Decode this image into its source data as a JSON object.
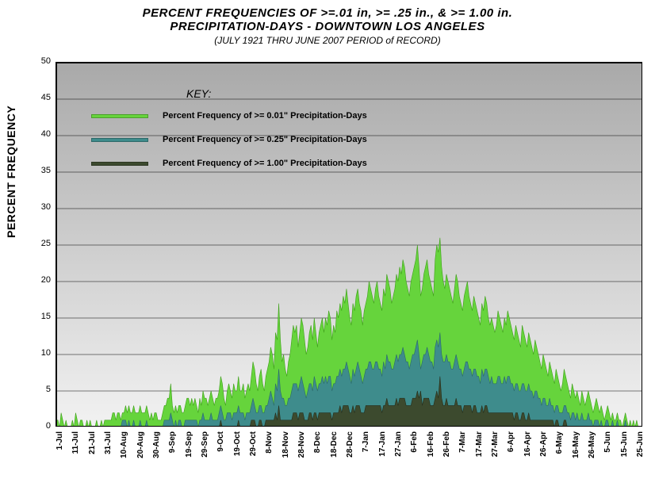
{
  "title_line1": "PERCENT FREQUENCIES OF >=.01 in,  >= .25 in., & >= 1.00 in.",
  "title_line2": "PRECIPITATION-DAYS  -  DOWNTOWN LOS ANGELES",
  "subtitle": "(JULY 1921 THRU JUNE 2007 PERIOD of RECORD)",
  "y_axis_label": "PERCENT FREQUENCY",
  "legend": {
    "title": "KEY:",
    "items": [
      {
        "label": "Percent Frequency of >= 0.01\" Precipitation-Days",
        "color": "#66d43c"
      },
      {
        "label": "Percent Frequency of >= 0.25\" Precipitation-Days",
        "color": "#3e8c8c"
      },
      {
        "label": "Percent Frequency of >= 1.00\" Precipitation-Days",
        "color": "#3c4a2e"
      }
    ]
  },
  "chart": {
    "type": "area",
    "ylim": [
      0,
      50
    ],
    "ytick_step": 5,
    "grid_color": "#000000",
    "grid_width": 0.6,
    "background": {
      "gradient_top": "#a9a9a9",
      "gradient_bottom": "#f2f2f2"
    },
    "x_labels": [
      "1-Jul",
      "11-Jul",
      "21-Jul",
      "31-Jul",
      "10-Aug",
      "20-Aug",
      "30-Aug",
      "9-Sep",
      "19-Sep",
      "29-Sep",
      "9-Oct",
      "19-Oct",
      "29-Oct",
      "8-Nov",
      "18-Nov",
      "28-Nov",
      "8-Dec",
      "18-Dec",
      "28-Dec",
      "7-Jan",
      "17-Jan",
      "27-Jan",
      "6-Feb",
      "16-Feb",
      "26-Feb",
      "7-Mar",
      "17-Mar",
      "27-Mar",
      "6-Apr",
      "16-Apr",
      "26-Apr",
      "6-May",
      "16-May",
      "26-May",
      "5-Jun",
      "15-Jun",
      "25-Jun"
    ],
    "x_label_step_days": 10,
    "n_days": 365,
    "series": [
      {
        "name": "ge001",
        "color": "#66d43c",
        "stroke": "#3da018",
        "values": [
          1,
          1,
          0,
          2,
          1,
          0,
          1,
          0,
          0,
          0,
          1,
          0,
          2,
          1,
          0,
          1,
          1,
          0,
          0,
          1,
          0,
          1,
          0,
          0,
          0,
          1,
          0,
          0,
          1,
          0,
          1,
          1,
          1,
          1,
          1,
          2,
          2,
          1,
          2,
          2,
          1,
          2,
          2,
          3,
          2,
          3,
          2,
          2,
          3,
          2,
          2,
          2,
          3,
          2,
          2,
          2,
          3,
          2,
          1,
          2,
          1,
          2,
          2,
          1,
          1,
          1,
          2,
          3,
          3,
          4,
          4,
          6,
          3,
          2,
          3,
          2,
          3,
          3,
          2,
          2,
          3,
          4,
          4,
          3,
          4,
          3,
          4,
          3,
          2,
          4,
          3,
          5,
          4,
          4,
          3,
          4,
          5,
          4,
          3,
          4,
          4,
          5,
          7,
          6,
          4,
          3,
          5,
          6,
          5,
          4,
          6,
          5,
          5,
          7,
          5,
          5,
          6,
          4,
          5,
          6,
          5,
          7,
          9,
          8,
          6,
          5,
          7,
          8,
          6,
          5,
          7,
          8,
          9,
          11,
          10,
          8,
          13,
          12,
          17,
          12,
          9,
          10,
          8,
          7,
          9,
          10,
          12,
          14,
          13,
          14,
          11,
          13,
          15,
          14,
          12,
          10,
          11,
          13,
          14,
          12,
          15,
          13,
          11,
          13,
          14,
          15,
          13,
          15,
          14,
          16,
          15,
          12,
          14,
          13,
          16,
          15,
          17,
          16,
          18,
          17,
          19,
          17,
          15,
          14,
          17,
          16,
          18,
          19,
          17,
          16,
          14,
          16,
          17,
          18,
          20,
          19,
          18,
          17,
          19,
          20,
          18,
          17,
          16,
          19,
          18,
          21,
          20,
          19,
          17,
          18,
          19,
          21,
          20,
          22,
          21,
          23,
          22,
          20,
          19,
          18,
          20,
          21,
          22,
          23,
          25,
          22,
          18,
          19,
          21,
          22,
          23,
          21,
          20,
          19,
          18,
          23,
          25,
          24,
          26,
          22,
          20,
          19,
          21,
          20,
          19,
          18,
          17,
          19,
          21,
          20,
          18,
          17,
          16,
          18,
          19,
          20,
          18,
          17,
          16,
          18,
          17,
          16,
          15,
          14,
          17,
          16,
          18,
          17,
          15,
          14,
          15,
          14,
          13,
          14,
          16,
          15,
          14,
          13,
          15,
          14,
          16,
          15,
          14,
          13,
          12,
          14,
          13,
          12,
          11,
          14,
          13,
          12,
          11,
          13,
          12,
          11,
          10,
          12,
          11,
          10,
          9,
          8,
          10,
          9,
          8,
          7,
          9,
          8,
          7,
          6,
          8,
          7,
          6,
          5,
          6,
          8,
          7,
          6,
          5,
          4,
          6,
          5,
          4,
          5,
          4,
          3,
          5,
          4,
          3,
          4,
          5,
          4,
          3,
          2,
          3,
          4,
          3,
          2,
          3,
          2,
          1,
          2,
          3,
          2,
          1,
          2,
          1,
          1,
          2,
          1,
          1,
          0,
          1,
          2,
          1,
          0,
          1,
          0,
          1,
          0,
          1,
          0,
          0
        ]
      },
      {
        "name": "ge025",
        "color": "#3e8c8c",
        "stroke": "#2b6a6a",
        "values": [
          0,
          0,
          0,
          0,
          0,
          0,
          0,
          0,
          0,
          0,
          0,
          0,
          0,
          0,
          0,
          0,
          0,
          0,
          0,
          0,
          0,
          0,
          0,
          0,
          0,
          0,
          0,
          0,
          0,
          0,
          0,
          0,
          0,
          0,
          0,
          0,
          0,
          0,
          0,
          0,
          0,
          1,
          1,
          1,
          0,
          1,
          0,
          0,
          1,
          0,
          0,
          0,
          1,
          0,
          0,
          0,
          1,
          0,
          0,
          0,
          0,
          0,
          0,
          0,
          0,
          0,
          0,
          1,
          1,
          1,
          1,
          2,
          1,
          0,
          1,
          0,
          1,
          1,
          0,
          0,
          1,
          1,
          1,
          1,
          1,
          1,
          1,
          1,
          0,
          1,
          1,
          2,
          1,
          1,
          1,
          1,
          2,
          1,
          1,
          1,
          1,
          2,
          3,
          2,
          1,
          1,
          2,
          2,
          2,
          1,
          2,
          2,
          2,
          3,
          2,
          2,
          2,
          1,
          2,
          2,
          2,
          3,
          4,
          3,
          2,
          2,
          3,
          3,
          2,
          2,
          3,
          3,
          4,
          5,
          4,
          3,
          6,
          5,
          8,
          5,
          4,
          4,
          3,
          3,
          4,
          4,
          5,
          6,
          6,
          6,
          5,
          6,
          7,
          6,
          5,
          4,
          5,
          6,
          6,
          5,
          7,
          6,
          5,
          6,
          6,
          7,
          6,
          7,
          6,
          7,
          7,
          5,
          6,
          6,
          7,
          7,
          8,
          7,
          8,
          8,
          9,
          8,
          7,
          6,
          8,
          7,
          8,
          9,
          8,
          7,
          6,
          7,
          8,
          8,
          9,
          9,
          8,
          8,
          9,
          9,
          8,
          8,
          7,
          9,
          8,
          10,
          9,
          9,
          8,
          8,
          9,
          10,
          9,
          10,
          10,
          11,
          10,
          9,
          9,
          8,
          9,
          10,
          10,
          11,
          12,
          10,
          8,
          9,
          10,
          10,
          11,
          10,
          9,
          9,
          8,
          11,
          12,
          11,
          13,
          10,
          9,
          9,
          10,
          9,
          9,
          8,
          8,
          9,
          10,
          9,
          8,
          8,
          7,
          8,
          9,
          9,
          8,
          8,
          7,
          8,
          8,
          7,
          7,
          6,
          8,
          7,
          8,
          8,
          7,
          6,
          7,
          6,
          6,
          6,
          7,
          7,
          6,
          6,
          7,
          6,
          7,
          7,
          6,
          6,
          5,
          6,
          6,
          5,
          5,
          6,
          6,
          5,
          5,
          6,
          5,
          5,
          4,
          5,
          5,
          4,
          4,
          3,
          4,
          4,
          3,
          3,
          4,
          3,
          3,
          2,
          3,
          3,
          2,
          2,
          2,
          3,
          3,
          2,
          2,
          1,
          2,
          2,
          1,
          2,
          1,
          1,
          2,
          1,
          1,
          1,
          2,
          1,
          1,
          0,
          1,
          1,
          1,
          0,
          1,
          0,
          0,
          1,
          1,
          0,
          0,
          1,
          0,
          0,
          1,
          0,
          0,
          0,
          0,
          1,
          0,
          0,
          0,
          0,
          0,
          0,
          0,
          0,
          0
        ]
      },
      {
        "name": "ge100",
        "color": "#3c4a2e",
        "stroke": "#262e1c",
        "values": [
          0,
          0,
          0,
          0,
          0,
          0,
          0,
          0,
          0,
          0,
          0,
          0,
          0,
          0,
          0,
          0,
          0,
          0,
          0,
          0,
          0,
          0,
          0,
          0,
          0,
          0,
          0,
          0,
          0,
          0,
          0,
          0,
          0,
          0,
          0,
          0,
          0,
          0,
          0,
          0,
          0,
          0,
          0,
          0,
          0,
          0,
          0,
          0,
          0,
          0,
          0,
          0,
          0,
          0,
          0,
          0,
          0,
          0,
          0,
          0,
          0,
          0,
          0,
          0,
          0,
          0,
          0,
          0,
          0,
          0,
          0,
          0,
          0,
          0,
          0,
          0,
          0,
          0,
          0,
          0,
          0,
          0,
          0,
          0,
          0,
          0,
          0,
          0,
          0,
          0,
          0,
          0,
          0,
          0,
          0,
          0,
          0,
          0,
          0,
          0,
          0,
          0,
          1,
          0,
          0,
          0,
          0,
          0,
          0,
          0,
          0,
          0,
          0,
          1,
          0,
          0,
          0,
          0,
          0,
          0,
          0,
          1,
          1,
          1,
          0,
          0,
          1,
          1,
          0,
          0,
          1,
          1,
          1,
          1,
          1,
          1,
          2,
          1,
          3,
          1,
          1,
          1,
          1,
          1,
          1,
          1,
          1,
          2,
          2,
          2,
          1,
          2,
          2,
          2,
          1,
          1,
          1,
          2,
          2,
          1,
          2,
          2,
          1,
          2,
          2,
          2,
          2,
          2,
          2,
          2,
          2,
          1,
          2,
          2,
          2,
          2,
          3,
          2,
          3,
          3,
          3,
          3,
          2,
          2,
          3,
          2,
          3,
          3,
          3,
          2,
          2,
          2,
          3,
          3,
          3,
          3,
          3,
          3,
          3,
          3,
          3,
          3,
          2,
          3,
          3,
          4,
          3,
          3,
          3,
          3,
          3,
          4,
          3,
          4,
          4,
          4,
          4,
          3,
          3,
          3,
          3,
          4,
          4,
          4,
          5,
          4,
          5,
          3,
          4,
          4,
          4,
          4,
          3,
          3,
          3,
          4,
          5,
          4,
          7,
          4,
          3,
          3,
          4,
          3,
          3,
          3,
          3,
          3,
          4,
          3,
          3,
          3,
          2,
          3,
          3,
          3,
          3,
          3,
          2,
          3,
          3,
          2,
          2,
          2,
          3,
          2,
          3,
          3,
          2,
          2,
          2,
          2,
          2,
          2,
          2,
          2,
          2,
          2,
          2,
          2,
          2,
          2,
          2,
          2,
          1,
          2,
          2,
          1,
          1,
          2,
          2,
          1,
          1,
          2,
          1,
          1,
          1,
          1,
          1,
          1,
          1,
          1,
          1,
          1,
          1,
          1,
          1,
          1,
          1,
          0,
          1,
          1,
          0,
          0,
          0,
          1,
          1,
          0,
          0,
          0,
          0,
          0,
          0,
          0,
          0,
          0,
          0,
          0,
          0,
          0,
          0,
          0,
          0,
          0,
          0,
          0,
          0,
          0,
          0,
          0,
          0,
          0,
          0,
          0,
          0,
          0,
          0,
          0,
          0,
          0,
          0,
          0,
          0,
          0,
          0,
          0,
          0,
          0,
          0,
          0,
          0,
          0,
          0
        ]
      }
    ]
  }
}
